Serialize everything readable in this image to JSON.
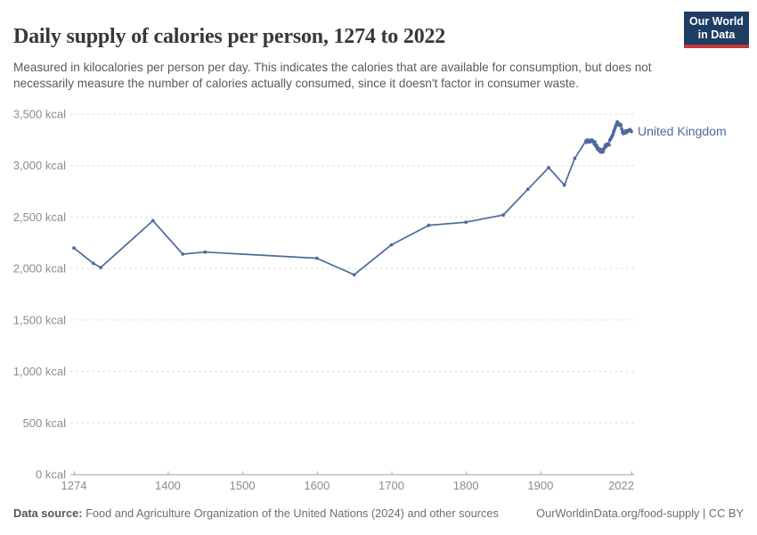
{
  "header": {
    "title": "Daily supply of calories per person, 1274 to 2022",
    "subtitle": "Measured in kilocalories per person per day. This indicates the calories that are available for consumption, but does not necessarily measure the number of calories actually consumed, since it doesn't factor in consumer waste.",
    "logo": {
      "line1": "Our World",
      "line2": "in Data",
      "bg_color": "#1d3d63",
      "accent_color": "#c53a37"
    }
  },
  "chart_data": {
    "type": "line",
    "title": "Daily supply of calories per person, 1274 to 2022",
    "entity_label": "United Kingdom",
    "unit": "kcal",
    "line_color": "#4c6a9c",
    "label_color": "#4c6a9c",
    "grid": true,
    "legend_position": "end-of-line",
    "xlim": [
      1274,
      2022
    ],
    "ylim": [
      0,
      3500
    ],
    "xticks": [
      1274,
      1400,
      1500,
      1600,
      1700,
      1800,
      1900,
      2022
    ],
    "yticks": [
      0,
      500,
      1000,
      1500,
      2000,
      2500,
      3000,
      3500
    ],
    "ytick_labels": [
      "0 kcal",
      "500 kcal",
      "1,000 kcal",
      "1,500 kcal",
      "2,000 kcal",
      "2,500 kcal",
      "3,000 kcal",
      "3,500 kcal"
    ],
    "points": [
      [
        1274,
        2200
      ],
      [
        1300,
        2050
      ],
      [
        1310,
        2010
      ],
      [
        1380,
        2465
      ],
      [
        1420,
        2140
      ],
      [
        1450,
        2160
      ],
      [
        1600,
        2100
      ],
      [
        1650,
        1940
      ],
      [
        1700,
        2230
      ],
      [
        1750,
        2420
      ],
      [
        1800,
        2450
      ],
      [
        1850,
        2520
      ],
      [
        1883,
        2770
      ],
      [
        1911,
        2980
      ],
      [
        1932,
        2810
      ],
      [
        1946,
        3070
      ],
      [
        1961,
        3240
      ],
      [
        1962,
        3225
      ],
      [
        1963,
        3250
      ],
      [
        1964,
        3235
      ],
      [
        1965,
        3245
      ],
      [
        1966,
        3230
      ],
      [
        1967,
        3245
      ],
      [
        1968,
        3235
      ],
      [
        1969,
        3250
      ],
      [
        1970,
        3240
      ],
      [
        1971,
        3230
      ],
      [
        1972,
        3210
      ],
      [
        1973,
        3230
      ],
      [
        1974,
        3190
      ],
      [
        1975,
        3200
      ],
      [
        1976,
        3165
      ],
      [
        1977,
        3175
      ],
      [
        1978,
        3150
      ],
      [
        1979,
        3160
      ],
      [
        1980,
        3135
      ],
      [
        1981,
        3155
      ],
      [
        1982,
        3130
      ],
      [
        1983,
        3155
      ],
      [
        1984,
        3135
      ],
      [
        1985,
        3160
      ],
      [
        1986,
        3175
      ],
      [
        1987,
        3200
      ],
      [
        1988,
        3185
      ],
      [
        1989,
        3210
      ],
      [
        1990,
        3200
      ],
      [
        1991,
        3210
      ],
      [
        1992,
        3200
      ],
      [
        1993,
        3245
      ],
      [
        1994,
        3260
      ],
      [
        1995,
        3270
      ],
      [
        1996,
        3285
      ],
      [
        1997,
        3300
      ],
      [
        1998,
        3325
      ],
      [
        1999,
        3345
      ],
      [
        2000,
        3365
      ],
      [
        2001,
        3385
      ],
      [
        2002,
        3405
      ],
      [
        2003,
        3425
      ],
      [
        2004,
        3415
      ],
      [
        2005,
        3395
      ],
      [
        2006,
        3405
      ],
      [
        2007,
        3390
      ],
      [
        2008,
        3395
      ],
      [
        2009,
        3355
      ],
      [
        2010,
        3325
      ],
      [
        2011,
        3310
      ],
      [
        2012,
        3330
      ],
      [
        2013,
        3315
      ],
      [
        2014,
        3335
      ],
      [
        2015,
        3320
      ],
      [
        2016,
        3340
      ],
      [
        2017,
        3330
      ],
      [
        2018,
        3340
      ],
      [
        2019,
        3345
      ],
      [
        2020,
        3350
      ],
      [
        2021,
        3340
      ],
      [
        2022,
        3330
      ]
    ]
  },
  "footer": {
    "source_label": "Data source:",
    "source_text": " Food and Agriculture Organization of the United Nations (2024) and other sources",
    "credit": "OurWorldinData.org/food-supply | CC BY"
  }
}
